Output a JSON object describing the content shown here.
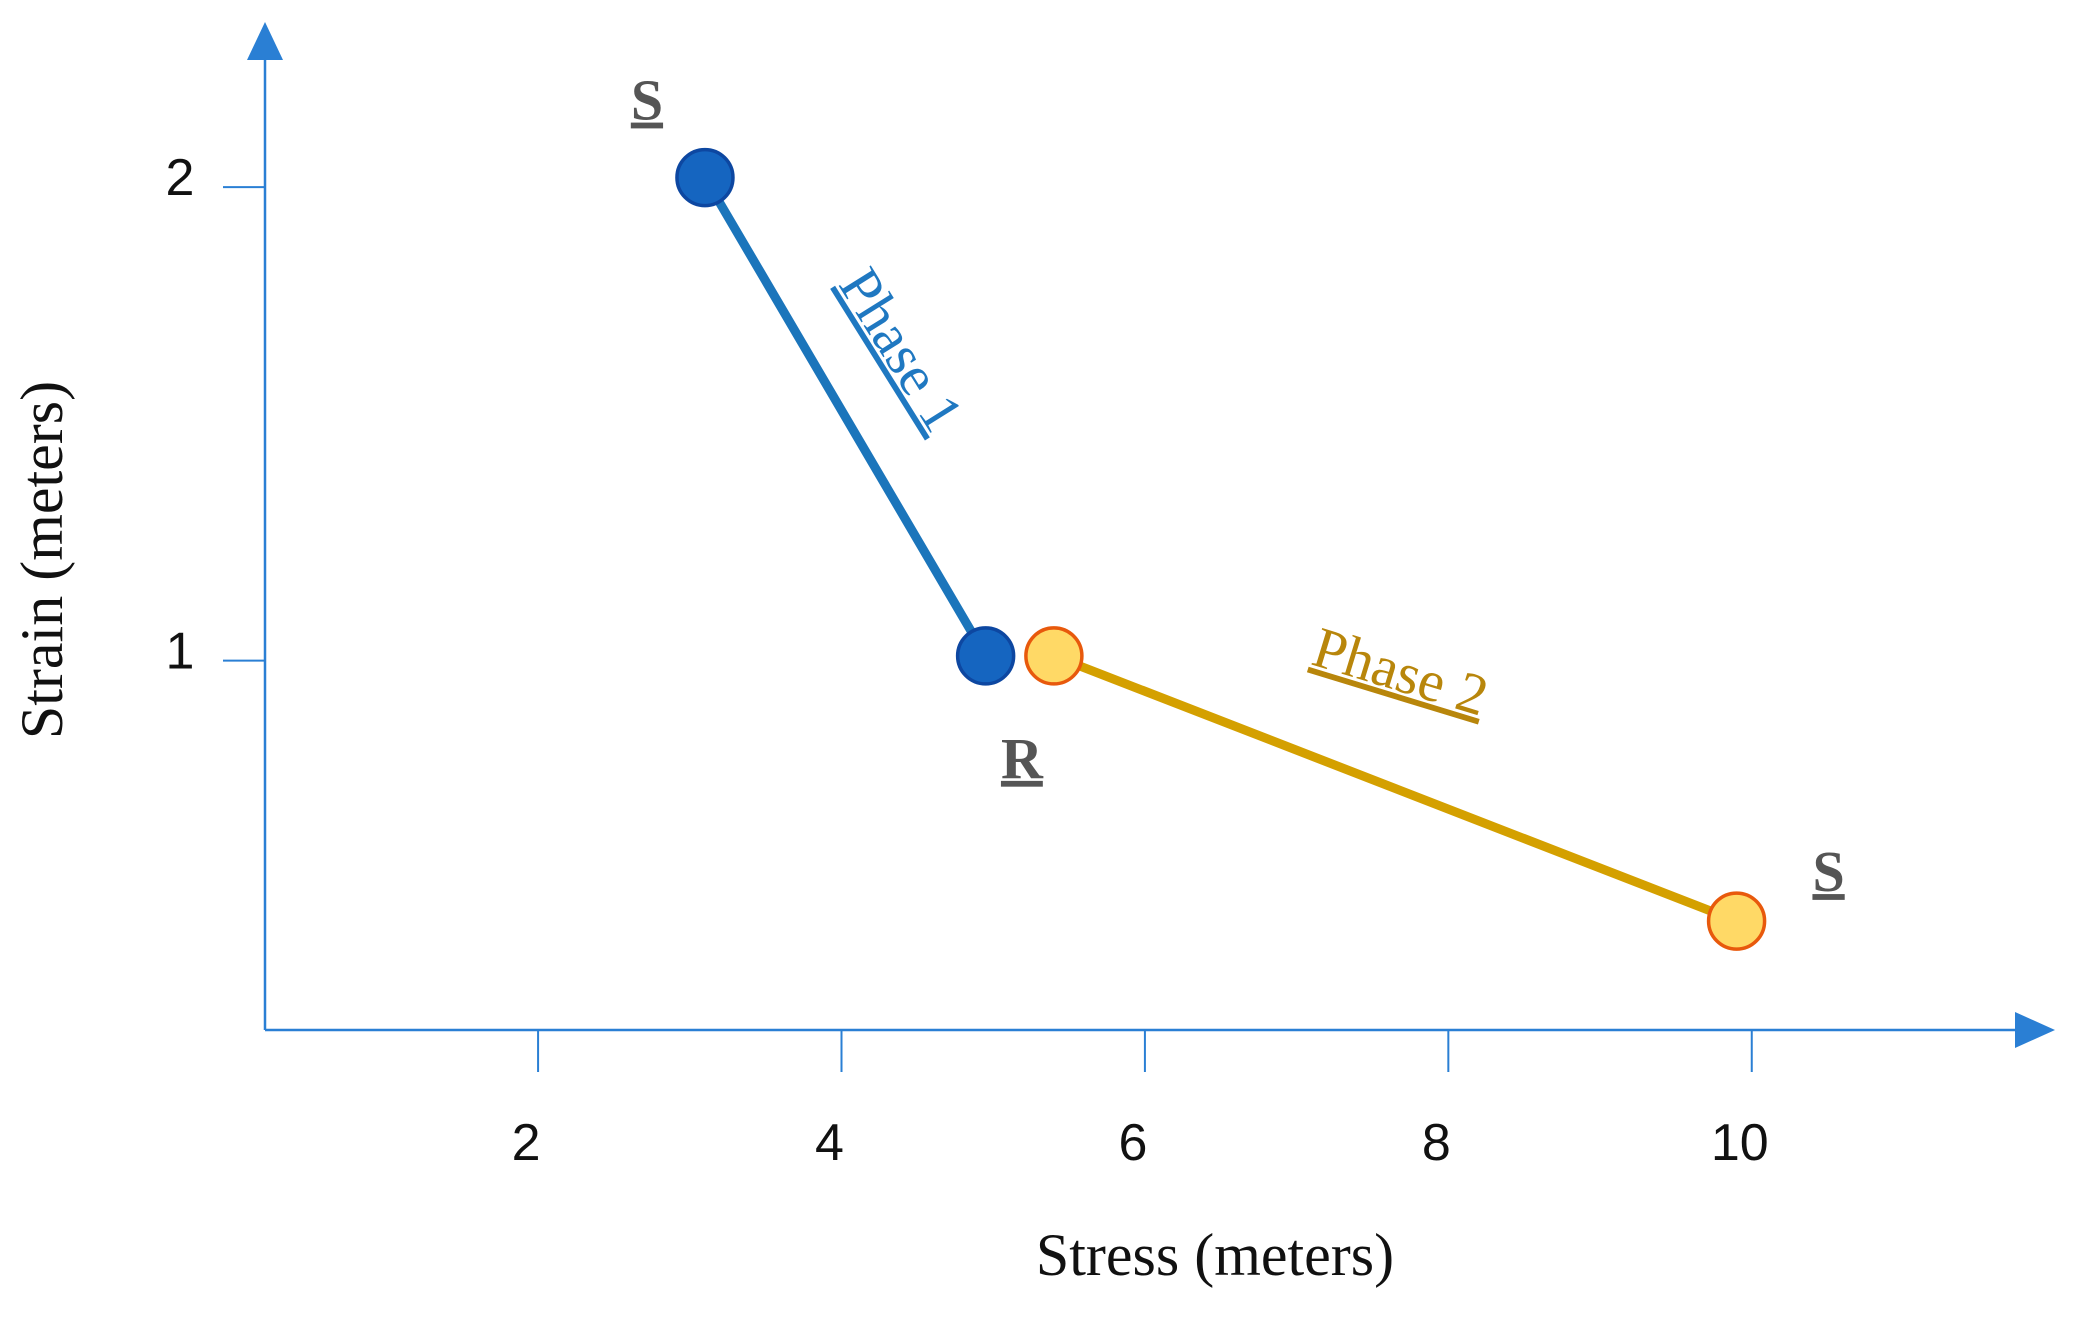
{
  "chart_data": {
    "type": "line",
    "xlabel": "Stress (meters)",
    "ylabel": "Strain (meters)",
    "xlim": [
      0.2,
      11.9
    ],
    "ylim": [
      0.22,
      2.3
    ],
    "x_ticks": [
      2,
      4,
      6,
      8,
      10
    ],
    "y_ticks": [
      1,
      2
    ],
    "grid": false,
    "axis_color": "#2a7fd4",
    "series": [
      {
        "name": "Phase 1",
        "color": "#1b75bb",
        "marker_fill": "#1565c0",
        "marker_stroke": "#0d47a1",
        "points": [
          {
            "x": 3.1,
            "y": 2.02,
            "label": "S"
          },
          {
            "x": 4.95,
            "y": 1.01,
            "label": ""
          }
        ]
      },
      {
        "name": "Phase 2",
        "color": "#d4a000",
        "marker_fill": "#ffd966",
        "marker_stroke": "#e8590c",
        "points": [
          {
            "x": 5.4,
            "y": 1.01,
            "label": "R"
          },
          {
            "x": 9.9,
            "y": 0.45,
            "label": "S"
          }
        ]
      }
    ]
  }
}
